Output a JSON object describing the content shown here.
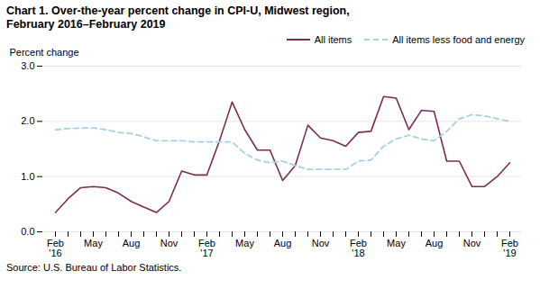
{
  "chart_data": {
    "type": "line",
    "title": "Chart 1. Over-the-year percent change in CPI-U, Midwest region,",
    "subtitle": "February 2016–February 2019",
    "y_label": "Percent change",
    "source": "Source: U.S. Bureau of Labor Statistics.",
    "categories": [
      "Feb\n'16",
      null,
      null,
      "May",
      null,
      null,
      "Aug",
      null,
      null,
      "Nov",
      null,
      null,
      "Feb\n'17",
      null,
      null,
      "May",
      null,
      null,
      "Aug",
      null,
      null,
      "Nov",
      null,
      null,
      "Feb\n'18",
      null,
      null,
      "May",
      null,
      null,
      "Aug",
      null,
      null,
      "Nov",
      null,
      null,
      "Feb\n'19"
    ],
    "series": [
      {
        "name": "All items",
        "color": "#7B2D52",
        "line_style": "solid",
        "values": [
          0.35,
          0.6,
          0.8,
          0.82,
          0.8,
          0.7,
          0.55,
          0.45,
          0.35,
          0.55,
          1.1,
          1.03,
          1.03,
          1.65,
          2.35,
          1.85,
          1.48,
          1.48,
          0.93,
          1.2,
          1.93,
          1.7,
          1.65,
          1.55,
          1.8,
          1.82,
          2.45,
          2.42,
          1.85,
          2.2,
          2.18,
          1.28,
          1.28,
          0.82,
          0.82,
          1.0,
          1.25
        ]
      },
      {
        "name": "All items less food and energy",
        "color": "#A8D0E8",
        "line_style": "dashed",
        "values": [
          1.85,
          1.87,
          1.88,
          1.88,
          1.85,
          1.8,
          1.78,
          1.72,
          1.65,
          1.65,
          1.65,
          1.63,
          1.63,
          1.63,
          1.63,
          1.42,
          1.3,
          1.25,
          1.28,
          1.2,
          1.13,
          1.13,
          1.13,
          1.13,
          1.28,
          1.3,
          1.55,
          1.68,
          1.75,
          1.68,
          1.65,
          1.82,
          2.05,
          2.12,
          2.1,
          2.05,
          2.0
        ]
      }
    ],
    "ylim": [
      0.0,
      3.0
    ],
    "yticks": [
      {
        "value": 0,
        "label": "0.0"
      },
      {
        "value": 1,
        "label": "1.0"
      },
      {
        "value": 2,
        "label": "2.0"
      },
      {
        "value": 3,
        "label": "3.0"
      }
    ],
    "grid": true,
    "legend": "upper right"
  }
}
